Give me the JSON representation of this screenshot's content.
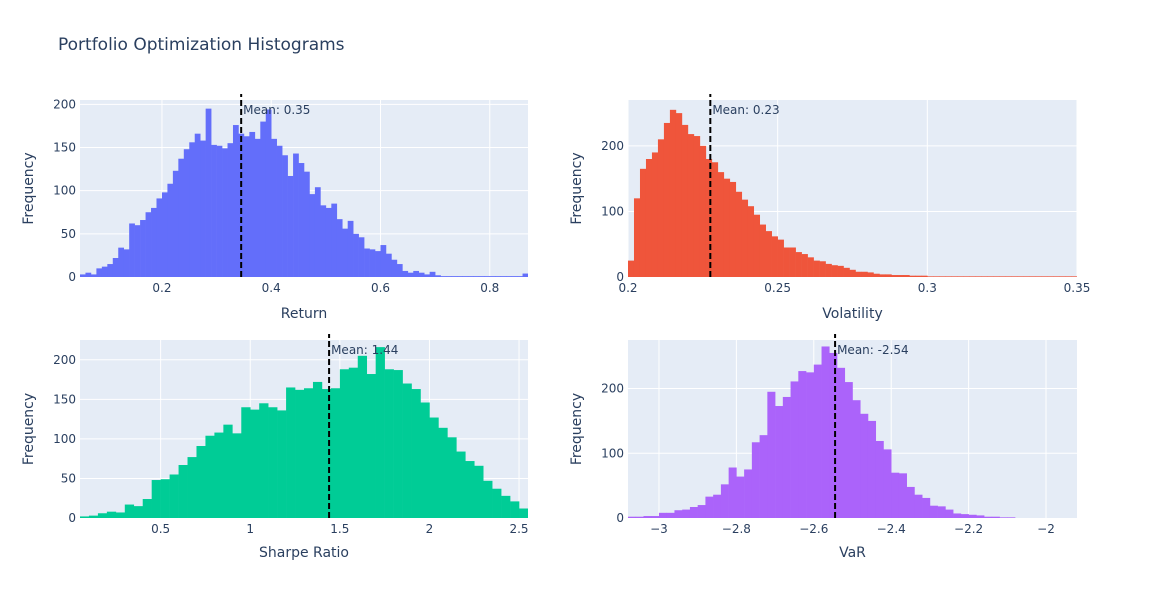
{
  "title": "Portfolio Optimization Histograms",
  "colors": {
    "plot_bg": "#e5ecf6",
    "grid": "#ffffff",
    "text": "#2a3f5f",
    "mean_line": "#000000"
  },
  "chart_data": [
    {
      "type": "bar",
      "series_name": "",
      "xlabel": "Return",
      "ylabel": "Frequency",
      "color": "#636efa",
      "xlim": [
        0.05,
        0.87
      ],
      "ylim": [
        0,
        205
      ],
      "xticks": [
        {
          "v": 0.2,
          "label": "0.2"
        },
        {
          "v": 0.4,
          "label": "0.4"
        },
        {
          "v": 0.6,
          "label": "0.6"
        },
        {
          "v": 0.8,
          "label": "0.8"
        }
      ],
      "yticks": [
        {
          "v": 0,
          "label": "0"
        },
        {
          "v": 50,
          "label": "50"
        },
        {
          "v": 100,
          "label": "100"
        },
        {
          "v": 150,
          "label": "150"
        },
        {
          "v": 200,
          "label": "200"
        }
      ],
      "bin_start": 0.05,
      "bin_width": 0.01,
      "counts": [
        3,
        5,
        3,
        10,
        12,
        15,
        22,
        34,
        32,
        62,
        60,
        66,
        75,
        80,
        91,
        98,
        108,
        123,
        137,
        148,
        156,
        166,
        158,
        195,
        153,
        152,
        149,
        155,
        176,
        166,
        163,
        168,
        160,
        180,
        194,
        160,
        152,
        141,
        117,
        143,
        132,
        122,
        96,
        104,
        83,
        80,
        85,
        67,
        56,
        65,
        50,
        46,
        33,
        32,
        30,
        37,
        27,
        20,
        15,
        7,
        5,
        7,
        5,
        3,
        6,
        2,
        1,
        1,
        1,
        1,
        1,
        1,
        1,
        1,
        1,
        1,
        1,
        1,
        1,
        1,
        1,
        4,
        1
      ],
      "mean": 0.345,
      "mean_label": "Mean: 0.35"
    },
    {
      "type": "bar",
      "series_name": "",
      "xlabel": "Volatility",
      "ylabel": "Frequency",
      "color": "#ef553b",
      "xlim": [
        0.2,
        0.35
      ],
      "ylim": [
        0,
        270
      ],
      "xticks": [
        {
          "v": 0.2,
          "label": "0.2"
        },
        {
          "v": 0.25,
          "label": "0.25"
        },
        {
          "v": 0.3,
          "label": "0.3"
        },
        {
          "v": 0.35,
          "label": "0.35"
        }
      ],
      "yticks": [
        {
          "v": 0,
          "label": "0"
        },
        {
          "v": 100,
          "label": "100"
        },
        {
          "v": 200,
          "label": "200"
        }
      ],
      "bin_start": 0.2,
      "bin_width": 0.002,
      "counts": [
        25,
        120,
        165,
        180,
        190,
        210,
        235,
        255,
        250,
        232,
        218,
        215,
        200,
        180,
        175,
        160,
        150,
        145,
        130,
        118,
        108,
        95,
        80,
        70,
        62,
        57,
        45,
        45,
        38,
        35,
        30,
        25,
        24,
        20,
        18,
        17,
        14,
        11,
        8,
        8,
        7,
        5,
        4,
        4,
        3,
        3,
        3,
        2,
        2,
        2,
        1,
        1,
        1,
        1,
        1,
        1,
        1,
        1,
        1,
        1,
        1,
        1,
        1,
        1,
        1,
        1,
        1,
        1,
        1,
        1,
        1,
        1,
        1,
        1,
        1
      ],
      "mean": 0.2275,
      "mean_label": "Mean: 0.23"
    },
    {
      "type": "bar",
      "series_name": "",
      "xlabel": "Sharpe Ratio",
      "ylabel": "Frequency",
      "color": "#00cc96",
      "xlim": [
        0.05,
        2.55
      ],
      "ylim": [
        0,
        225
      ],
      "xticks": [
        {
          "v": 0.5,
          "label": "0.5"
        },
        {
          "v": 1,
          "label": "1"
        },
        {
          "v": 1.5,
          "label": "1.5"
        },
        {
          "v": 2,
          "label": "2"
        },
        {
          "v": 2.5,
          "label": "2.5"
        }
      ],
      "yticks": [
        {
          "v": 0,
          "label": "0"
        },
        {
          "v": 50,
          "label": "50"
        },
        {
          "v": 100,
          "label": "100"
        },
        {
          "v": 150,
          "label": "150"
        },
        {
          "v": 200,
          "label": "200"
        }
      ],
      "bin_start": 0.05,
      "bin_width": 0.05,
      "counts": [
        2,
        3,
        6,
        8,
        7,
        17,
        15,
        24,
        48,
        49,
        55,
        67,
        77,
        91,
        104,
        108,
        118,
        107,
        140,
        137,
        145,
        140,
        136,
        165,
        162,
        164,
        172,
        163,
        164,
        188,
        190,
        205,
        182,
        216,
        188,
        187,
        170,
        163,
        146,
        127,
        114,
        102,
        84,
        72,
        66,
        47,
        37,
        28,
        21,
        12,
        7
      ],
      "mean": 1.44,
      "mean_label": "Mean: 1.44"
    },
    {
      "type": "bar",
      "series_name": "",
      "xlabel": "VaR",
      "ylabel": "Frequency",
      "color": "#ab63fa",
      "xlim": [
        -3.08,
        -1.92
      ],
      "ylim": [
        0,
        275
      ],
      "xticks": [
        {
          "v": -3,
          "label": "−3"
        },
        {
          "v": -2.8,
          "label": "−2.8"
        },
        {
          "v": -2.6,
          "label": "−2.6"
        },
        {
          "v": -2.4,
          "label": "−2.4"
        },
        {
          "v": -2.2,
          "label": "−2.2"
        },
        {
          "v": -2,
          "label": "−2"
        }
      ],
      "yticks": [
        {
          "v": 0,
          "label": "0"
        },
        {
          "v": 100,
          "label": "100"
        },
        {
          "v": 200,
          "label": "200"
        }
      ],
      "bin_start": -3.08,
      "bin_width": 0.02,
      "counts": [
        2,
        2,
        3,
        3,
        8,
        8,
        12,
        13,
        17,
        20,
        33,
        36,
        52,
        78,
        64,
        75,
        117,
        128,
        195,
        173,
        187,
        211,
        227,
        225,
        237,
        265,
        255,
        232,
        210,
        182,
        161,
        150,
        119,
        106,
        70,
        69,
        48,
        36,
        31,
        19,
        18,
        13,
        7,
        6,
        5,
        4,
        2,
        2,
        1,
        1
      ],
      "mean": -2.545,
      "mean_label": "Mean: -2.54"
    }
  ]
}
